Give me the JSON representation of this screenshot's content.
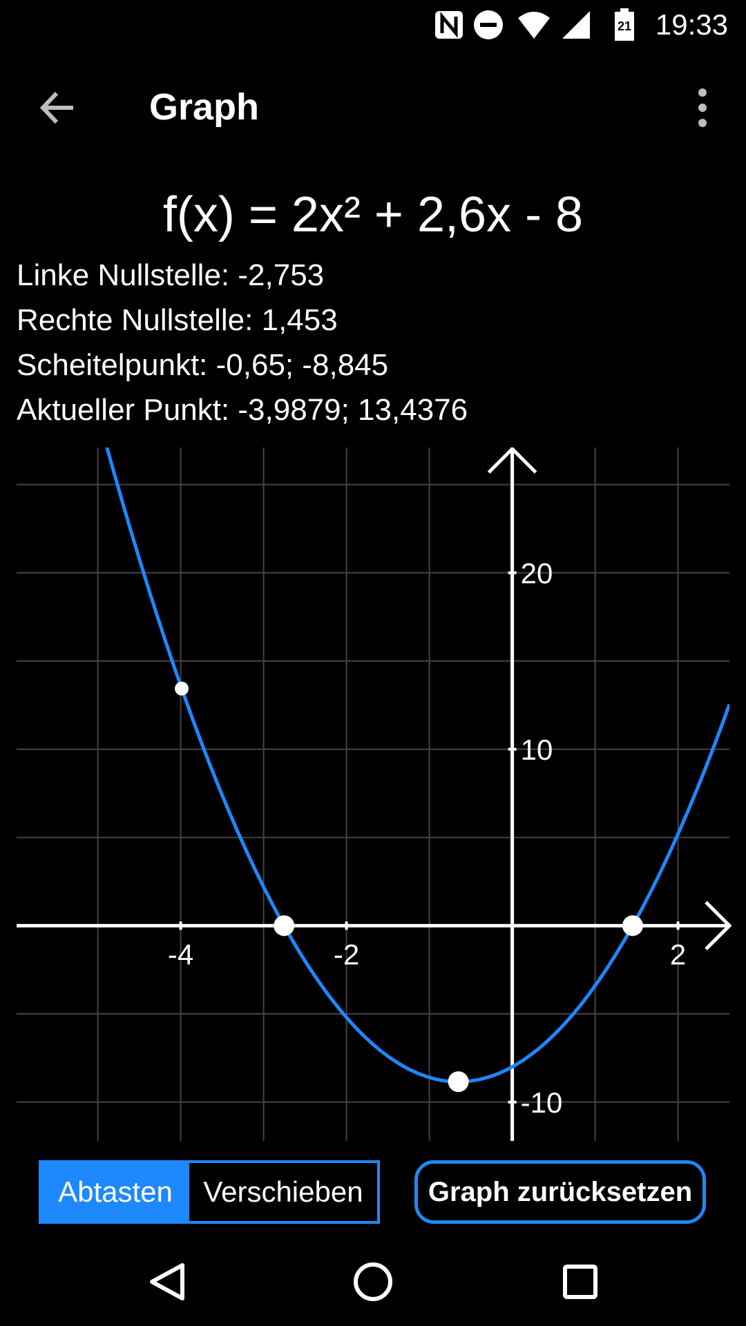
{
  "status_bar": {
    "time": "19:33",
    "battery_level": "21",
    "icons": [
      "nfc-icon",
      "do-not-disturb-icon",
      "wifi-icon",
      "signal-icon",
      "battery-icon"
    ]
  },
  "app_bar": {
    "title": "Graph",
    "back_icon": "arrow-back-icon",
    "menu_icon": "more-vert-icon"
  },
  "formula": "f(x) = 2x² + 2,6x - 8",
  "info": {
    "left_root": "Linke Nullstelle: -2,753",
    "right_root": "Rechte Nullstelle: 1,453",
    "vertex": "Scheitelpunkt: -0,65; -8,845",
    "current_point": "Aktueller Punkt: -3,9879; 13,4376"
  },
  "chart_data": {
    "type": "line",
    "function": "2x^2 + 2.6x - 8",
    "coefficients": {
      "a": 2,
      "b": 2.6,
      "c": -8
    },
    "xlim": [
      -5.98,
      2.62
    ],
    "ylim": [
      -12.2,
      27.1
    ],
    "x_ticks": [
      -4,
      -2,
      2
    ],
    "x_tick_labels": [
      "-4",
      "-2",
      "2"
    ],
    "y_ticks": [
      20,
      10,
      -10
    ],
    "y_tick_labels": [
      "20",
      "10",
      "-10"
    ],
    "grid": true,
    "curve_color": "#1e88ff",
    "marked_points": [
      {
        "name": "left-root",
        "x": -2.753,
        "y": 0
      },
      {
        "name": "right-root",
        "x": 1.453,
        "y": 0
      },
      {
        "name": "vertex",
        "x": -0.65,
        "y": -8.845
      },
      {
        "name": "current-point",
        "x": -3.9879,
        "y": 13.4376
      }
    ]
  },
  "controls": {
    "mode_scan": "Abtasten",
    "mode_move": "Verschieben",
    "active_mode": "Abtasten",
    "reset_label": "Graph zurücksetzen"
  },
  "nav_bar": {
    "icons": [
      "nav-back-icon",
      "nav-home-icon",
      "nav-recents-icon"
    ]
  },
  "colors": {
    "accent": "#1e88ff",
    "background": "#000000",
    "grid": "#444444",
    "axis": "#ffffff"
  }
}
